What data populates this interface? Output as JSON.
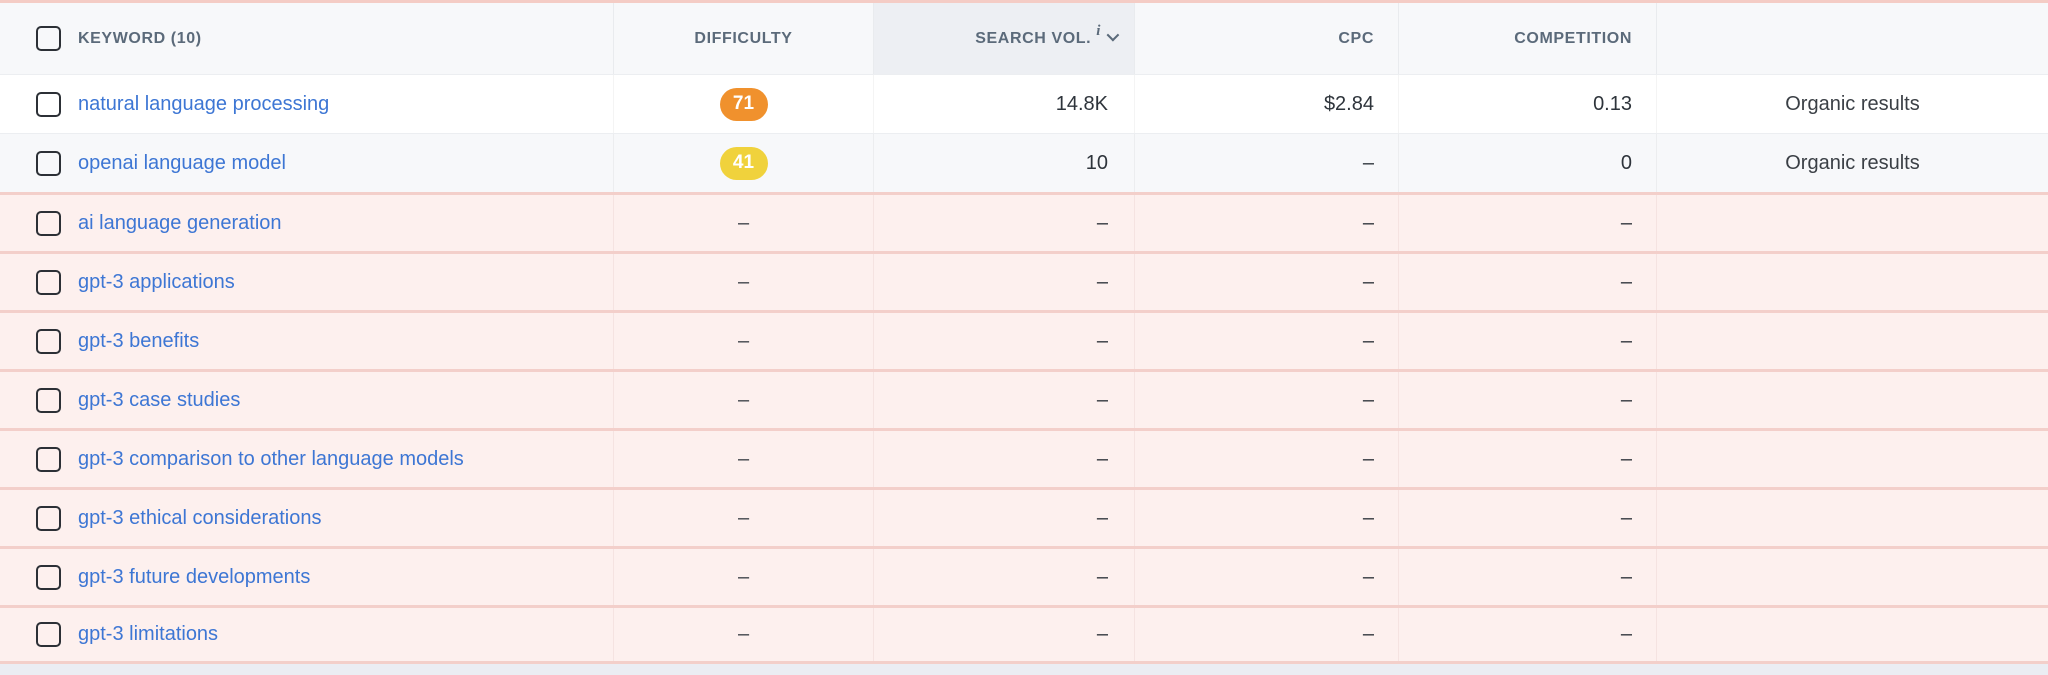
{
  "colors": {
    "accent_link_blue": "#3d76d4",
    "difficulty_orange": "#f0912d",
    "difficulty_yellow": "#f0d23c",
    "pending_row_pink": "#fdf0ee",
    "pending_border_salmon": "#f3cfca",
    "header_bg": "#f7f8fa",
    "sorted_column_header_bg": "#edeff3"
  },
  "header": {
    "keyword_label": "KEYWORD  (10)",
    "difficulty_label": "DIFFICULTY",
    "search_volume_label": "SEARCH VOL.",
    "cpc_label": "CPC",
    "competition_label": "COMPETITION",
    "serp_label": "",
    "info_icon_glyph": "i"
  },
  "table": {
    "rows": [
      {
        "keyword": "natural language processing",
        "difficulty": "71",
        "difficulty_color": "#f0912d",
        "search_volume": "14.8K",
        "cpc": "$2.84",
        "competition": "0.13",
        "serp": "Organic results",
        "state": "loaded"
      },
      {
        "keyword": "openai language model",
        "difficulty": "41",
        "difficulty_color": "#f0d23c",
        "search_volume": "10",
        "cpc": "–",
        "competition": "0",
        "serp": "Organic results",
        "state": "loaded"
      },
      {
        "keyword": "ai language generation",
        "difficulty": "–",
        "difficulty_color": "",
        "search_volume": "–",
        "cpc": "–",
        "competition": "–",
        "serp": "",
        "state": "pending"
      },
      {
        "keyword": "gpt-3 applications",
        "difficulty": "–",
        "difficulty_color": "",
        "search_volume": "–",
        "cpc": "–",
        "competition": "–",
        "serp": "",
        "state": "pending"
      },
      {
        "keyword": "gpt-3 benefits",
        "difficulty": "–",
        "difficulty_color": "",
        "search_volume": "–",
        "cpc": "–",
        "competition": "–",
        "serp": "",
        "state": "pending"
      },
      {
        "keyword": "gpt-3 case studies",
        "difficulty": "–",
        "difficulty_color": "",
        "search_volume": "–",
        "cpc": "–",
        "competition": "–",
        "serp": "",
        "state": "pending"
      },
      {
        "keyword": "gpt-3 comparison to other language models",
        "difficulty": "–",
        "difficulty_color": "",
        "search_volume": "–",
        "cpc": "–",
        "competition": "–",
        "serp": "",
        "state": "pending"
      },
      {
        "keyword": "gpt-3 ethical considerations",
        "difficulty": "–",
        "difficulty_color": "",
        "search_volume": "–",
        "cpc": "–",
        "competition": "–",
        "serp": "",
        "state": "pending"
      },
      {
        "keyword": "gpt-3 future developments",
        "difficulty": "–",
        "difficulty_color": "",
        "search_volume": "–",
        "cpc": "–",
        "competition": "–",
        "serp": "",
        "state": "pending"
      },
      {
        "keyword": "gpt-3 limitations",
        "difficulty": "–",
        "difficulty_color": "",
        "search_volume": "–",
        "cpc": "–",
        "competition": "–",
        "serp": "",
        "state": "pending"
      }
    ]
  }
}
